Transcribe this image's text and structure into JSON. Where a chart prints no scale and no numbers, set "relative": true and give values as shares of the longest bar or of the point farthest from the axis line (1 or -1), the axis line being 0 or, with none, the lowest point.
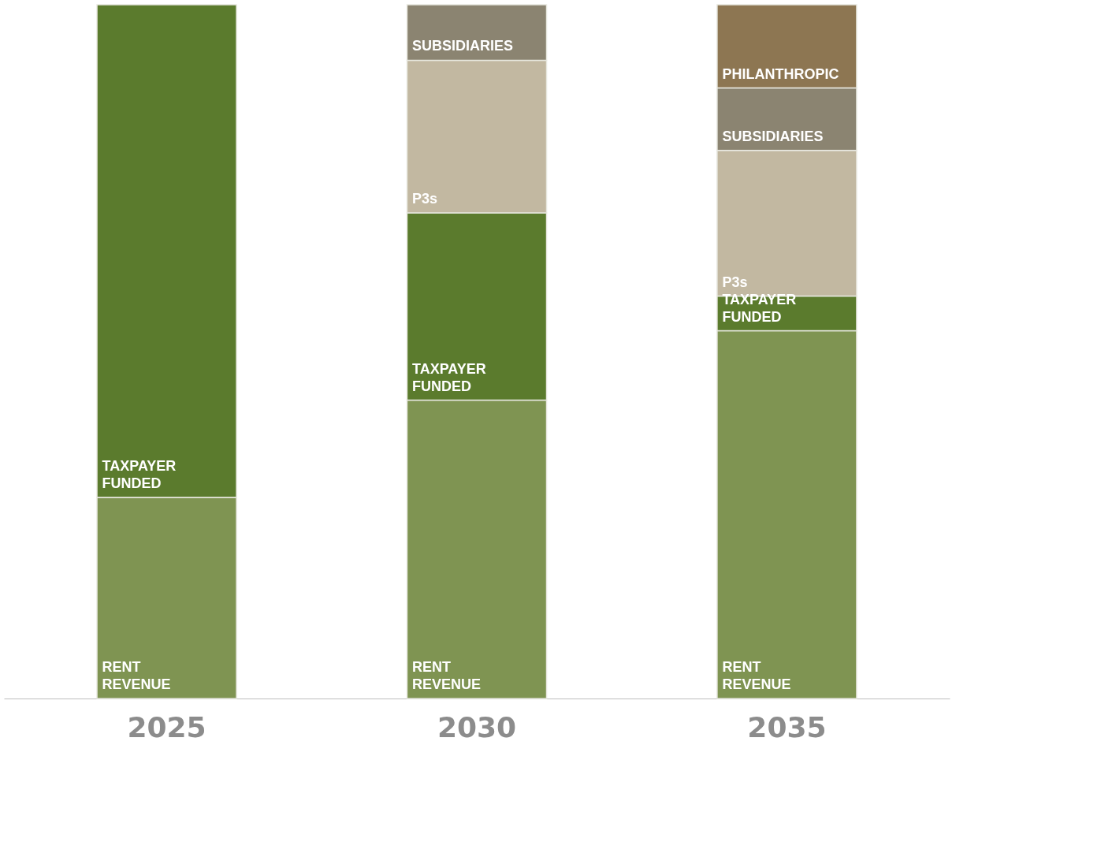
{
  "chart_data": {
    "type": "bar",
    "stacked": true,
    "relative": true,
    "legend": false,
    "categories": [
      "2025",
      "2030",
      "2035"
    ],
    "series": [
      {
        "name": "RENT REVENUE",
        "color": "#7f9452",
        "values": [
          0.29,
          0.43,
          0.53
        ]
      },
      {
        "name": "TAXPAYER FUNDED",
        "color": "#5b7b2d",
        "values": [
          0.71,
          0.27,
          0.05
        ]
      },
      {
        "name": "P3s",
        "color": "#c2b8a1",
        "values": [
          null,
          0.22,
          0.21
        ]
      },
      {
        "name": "SUBSIDIARIES",
        "color": "#8b8471",
        "values": [
          null,
          0.08,
          0.09
        ]
      },
      {
        "name": "PHILANTHROPIC",
        "color": "#8d7652",
        "values": [
          null,
          null,
          0.12
        ]
      }
    ]
  }
}
